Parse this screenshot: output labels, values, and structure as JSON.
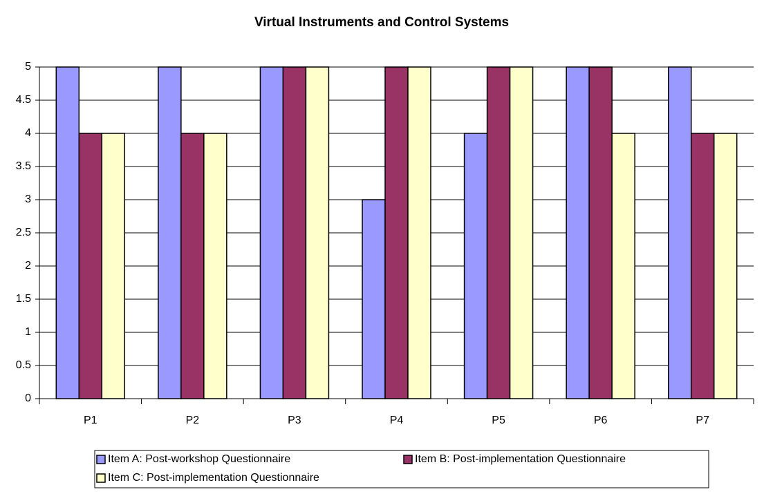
{
  "chart_data": {
    "type": "bar",
    "title": "Virtual Instruments and Control Systems",
    "categories": [
      "P1",
      "P2",
      "P3",
      "P4",
      "P5",
      "P6",
      "P7"
    ],
    "series": [
      {
        "name": "Item A: Post-workshop Questionnaire",
        "color": "#9999ff",
        "values": [
          5,
          5,
          5,
          3,
          4,
          5,
          5
        ]
      },
      {
        "name": "Item B: Post-implementation Questionnaire",
        "color": "#993366",
        "values": [
          4,
          4,
          5,
          5,
          5,
          5,
          4
        ]
      },
      {
        "name": "Item C: Post-implementation Questionnaire",
        "color": "#ffffcc",
        "values": [
          4,
          4,
          5,
          5,
          5,
          4,
          4
        ]
      }
    ],
    "ylim": [
      0,
      5
    ],
    "yticks": [
      0,
      0.5,
      1,
      1.5,
      2,
      2.5,
      3,
      3.5,
      4,
      4.5,
      5
    ],
    "grid": true,
    "legend": "bottom"
  }
}
